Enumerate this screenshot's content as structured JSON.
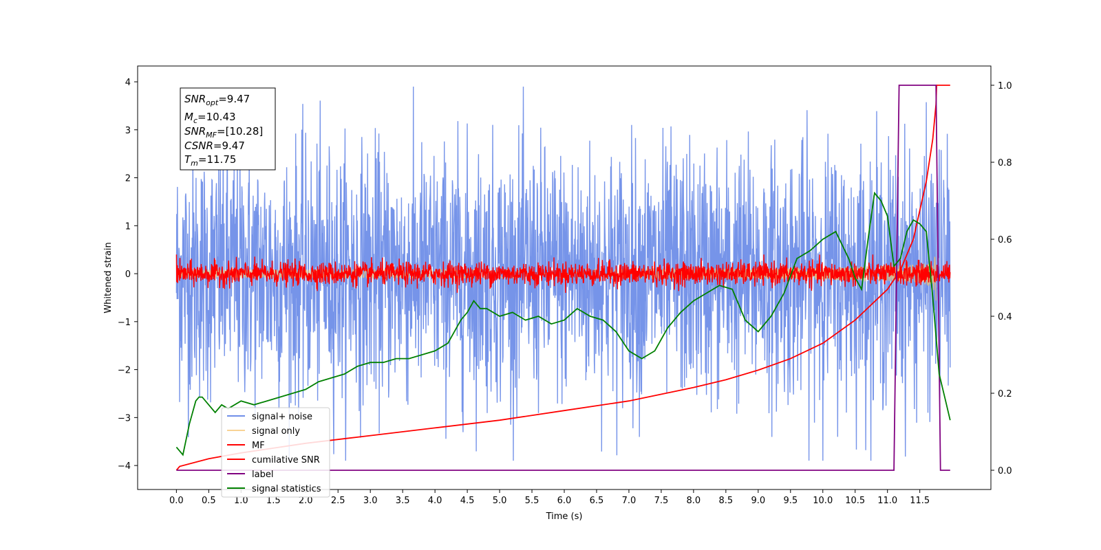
{
  "chart_data": {
    "type": "line",
    "xlabel": "Time (s)",
    "ylabel": "Whitened strain",
    "xlim": [
      -0.6,
      12.6
    ],
    "ylim": [
      -4.5,
      4.33
    ],
    "y2lim": [
      -0.05,
      1.05
    ],
    "xticks": [
      "0.0",
      "0.5",
      "1.0",
      "1.5",
      "2.0",
      "2.5",
      "3.0",
      "3.5",
      "4.0",
      "4.5",
      "5.0",
      "5.5",
      "6.0",
      "6.5",
      "7.0",
      "7.5",
      "8.0",
      "8.5",
      "9.0",
      "9.5",
      "10.0",
      "10.5",
      "11.0",
      "11.5"
    ],
    "yticks": [
      "4",
      "3",
      "2",
      "1",
      "0",
      "−1",
      "−2",
      "−3",
      "−4"
    ],
    "y2ticks": [
      "1.0",
      "0.8",
      "0.6",
      "0.4",
      "0.2",
      "0.0"
    ],
    "grid": false,
    "legend_position": "lower-left",
    "info_box": {
      "snr_opt": {
        "sym": "SNR",
        "sub": "opt",
        "val": "=9.47"
      },
      "mc": {
        "sym": "M",
        "sub": "c",
        "val": "=10.43"
      },
      "snr_mf": {
        "sym": "SNR",
        "sub": "MF",
        "val": "=[10.28]"
      },
      "csnr": {
        "sym": "CSNR",
        "sub": "",
        "val": "=9.47"
      },
      "tm": {
        "sym": "T",
        "sub": "m",
        "val": "=11.75"
      }
    },
    "series": [
      {
        "name": "signal+ noise",
        "color": "#6f8ee8",
        "axis": "left",
        "kind": "noise",
        "amplitude": 1.3,
        "t_range": [
          0,
          11.97
        ]
      },
      {
        "name": "signal only",
        "color": "#f5c470",
        "axis": "left",
        "kind": "chirp",
        "t_range": [
          0,
          11.75
        ],
        "peak_amplitude": 0.9,
        "merger_time": 11.75
      },
      {
        "name": "MF",
        "color": "#ff0000",
        "axis": "left",
        "kind": "noise",
        "amplitude": 0.12,
        "t_range": [
          0,
          11.97
        ],
        "start_value": 1.0
      },
      {
        "name": "cumilative SNR",
        "color": "#ff0000",
        "axis": "right",
        "t": [
          0.0,
          0.05,
          0.5,
          1.0,
          2.0,
          3.0,
          4.0,
          5.0,
          6.0,
          7.0,
          8.0,
          8.5,
          9.0,
          9.5,
          10.0,
          10.5,
          11.0,
          11.2,
          11.4,
          11.6,
          11.7,
          11.75,
          11.76,
          11.97
        ],
        "y": [
          0.0,
          0.01,
          0.03,
          0.045,
          0.07,
          0.09,
          0.11,
          0.13,
          0.155,
          0.18,
          0.215,
          0.235,
          0.26,
          0.29,
          0.33,
          0.39,
          0.47,
          0.52,
          0.6,
          0.75,
          0.86,
          0.95,
          1.0,
          1.0
        ]
      },
      {
        "name": "label",
        "color": "#800080",
        "axis": "right",
        "t": [
          0.0,
          11.1,
          11.18,
          11.75,
          11.82,
          11.97
        ],
        "y": [
          0.0,
          0.0,
          1.0,
          1.0,
          0.0,
          0.0
        ]
      },
      {
        "name": "signal statistics",
        "color": "#008000",
        "axis": "right",
        "t": [
          0.0,
          0.1,
          0.2,
          0.3,
          0.35,
          0.4,
          0.5,
          0.6,
          0.7,
          0.8,
          1.0,
          1.2,
          1.4,
          1.6,
          1.8,
          2.0,
          2.2,
          2.4,
          2.6,
          2.8,
          3.0,
          3.2,
          3.4,
          3.6,
          3.8,
          4.0,
          4.2,
          4.3,
          4.4,
          4.5,
          4.6,
          4.7,
          4.8,
          5.0,
          5.2,
          5.4,
          5.6,
          5.8,
          6.0,
          6.2,
          6.4,
          6.6,
          6.8,
          7.0,
          7.2,
          7.4,
          7.6,
          7.8,
          8.0,
          8.2,
          8.4,
          8.6,
          8.8,
          9.0,
          9.2,
          9.4,
          9.6,
          9.8,
          10.0,
          10.2,
          10.4,
          10.5,
          10.6,
          10.7,
          10.8,
          10.9,
          11.0,
          11.1,
          11.2,
          11.3,
          11.4,
          11.5,
          11.6,
          11.7,
          11.8,
          11.9,
          11.97
        ],
        "y": [
          0.06,
          0.04,
          0.12,
          0.18,
          0.19,
          0.19,
          0.17,
          0.15,
          0.17,
          0.16,
          0.18,
          0.17,
          0.18,
          0.19,
          0.2,
          0.21,
          0.23,
          0.24,
          0.25,
          0.27,
          0.28,
          0.28,
          0.29,
          0.29,
          0.3,
          0.31,
          0.33,
          0.36,
          0.39,
          0.41,
          0.44,
          0.42,
          0.42,
          0.4,
          0.41,
          0.39,
          0.4,
          0.38,
          0.39,
          0.42,
          0.4,
          0.39,
          0.36,
          0.31,
          0.29,
          0.31,
          0.37,
          0.41,
          0.44,
          0.46,
          0.48,
          0.47,
          0.39,
          0.36,
          0.4,
          0.46,
          0.55,
          0.57,
          0.6,
          0.62,
          0.55,
          0.5,
          0.47,
          0.6,
          0.72,
          0.7,
          0.66,
          0.53,
          0.55,
          0.62,
          0.65,
          0.64,
          0.62,
          0.45,
          0.25,
          0.18,
          0.13
        ]
      }
    ]
  }
}
